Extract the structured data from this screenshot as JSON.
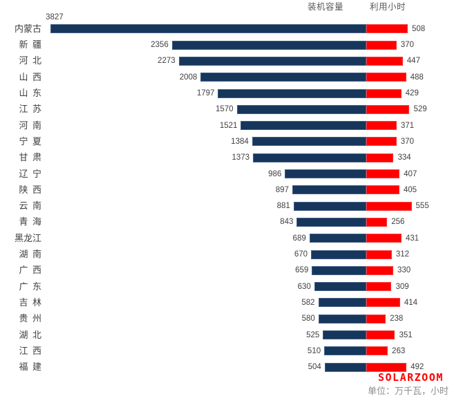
{
  "footer": {
    "watermark": "SOLARZOOM",
    "unit_note": "单位：万千瓦，小时"
  },
  "colors": {
    "capacity_bar": "#16365C",
    "hours_bar": "#FE0000",
    "watermark_red": "#FF0000",
    "value_label_text": "#404040",
    "header_text": "#595959",
    "unit_text": "#8C8C8C",
    "background": "#FFFFFF"
  },
  "chart_data": {
    "type": "bar",
    "subtype": "diverging-horizontal",
    "title": "",
    "legend_position": "top",
    "grid": false,
    "value_labels": "outside-end",
    "unit": "万千瓦, 小时",
    "categories": [
      "内蒙古",
      "新疆",
      "河北",
      "山西",
      "山东",
      "江苏",
      "河南",
      "宁夏",
      "甘肃",
      "辽宁",
      "陕西",
      "云南",
      "青海",
      "黑龙江",
      "湖南",
      "广西",
      "广东",
      "吉林",
      "贵州",
      "湖北",
      "江西",
      "福建"
    ],
    "series": [
      {
        "name": "装机容量",
        "side": "left",
        "color": "#16365C",
        "values": [
          3827,
          2356,
          2273,
          2008,
          1797,
          1570,
          1521,
          1384,
          1373,
          986,
          897,
          881,
          843,
          689,
          670,
          659,
          630,
          582,
          580,
          525,
          510,
          504
        ]
      },
      {
        "name": "利用小时",
        "side": "right",
        "color": "#FE0000",
        "values": [
          508,
          370,
          447,
          488,
          429,
          529,
          371,
          370,
          334,
          407,
          405,
          555,
          256,
          431,
          312,
          330,
          309,
          414,
          238,
          351,
          263,
          492
        ]
      }
    ]
  }
}
